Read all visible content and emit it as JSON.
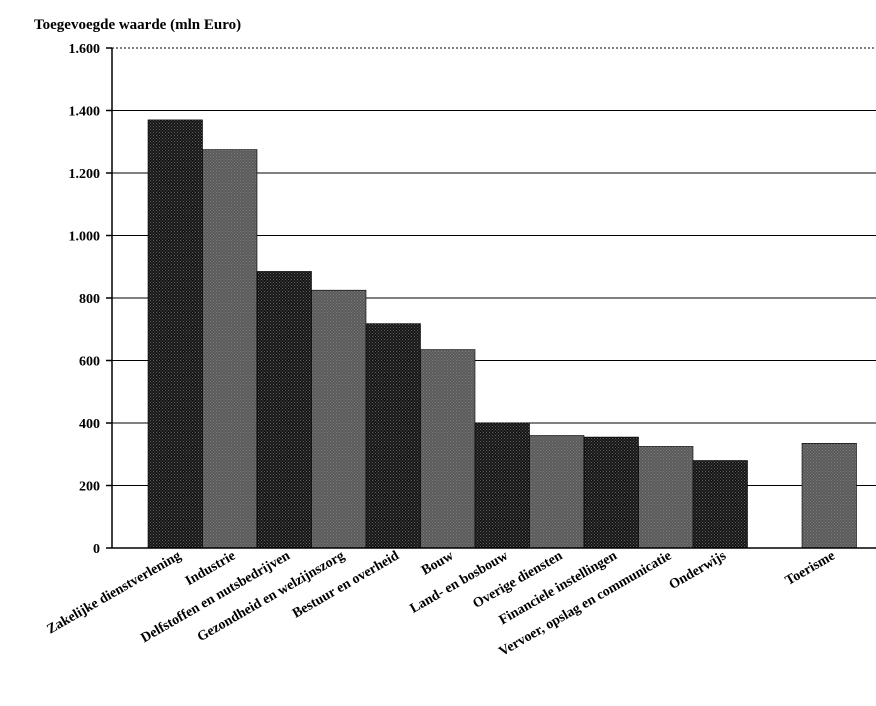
{
  "chart_data": {
    "type": "bar",
    "title": "Toegevoegde waarde (mln Euro)",
    "xlabel": "",
    "ylabel": "",
    "ylim": [
      0,
      1600
    ],
    "yticks": [
      0,
      200,
      400,
      600,
      800,
      1000,
      1200,
      1400,
      1600
    ],
    "ytick_labels": [
      "0",
      "200",
      "400",
      "600",
      "800",
      "1.000",
      "1.200",
      "1.400",
      "1.600"
    ],
    "grid": true,
    "categories": [
      "Zakelijke dienstverlening",
      "Industrie",
      "Delfstoffen en nutsbedrijven",
      "Gezondheid en welzijnszorg",
      "Bestuur en overheid",
      "Bouw",
      "Land- en bosbouw",
      "Overige diensten",
      "Financiele instellingen",
      "Vervoer, opslag en communicatie",
      "Onderwijs",
      "",
      "Toerisme"
    ],
    "values": [
      1370,
      1275,
      885,
      825,
      718,
      635,
      400,
      360,
      355,
      325,
      280,
      null,
      335
    ],
    "colors": [
      "#151515",
      "#5a5a5a",
      "#151515",
      "#5a5a5a",
      "#151515",
      "#5a5a5a",
      "#151515",
      "#5a5a5a",
      "#151515",
      "#5a5a5a",
      "#151515",
      null,
      "#5a5a5a"
    ]
  }
}
